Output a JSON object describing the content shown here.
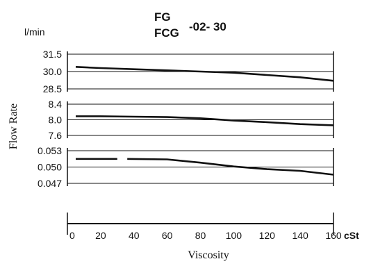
{
  "title": {
    "line1": "FG",
    "line2_prefix": "FCG",
    "line2_suffix": "-02- 30"
  },
  "unit_label": "l/min",
  "ylabel": "Flow Rate",
  "xlabel": "Viscosity",
  "x_unit": "cSt",
  "colors": {
    "ink": "#111111",
    "background": "#ffffff"
  },
  "chart_data": [
    {
      "type": "line",
      "panel": "top",
      "x": [
        5,
        20,
        40,
        60,
        80,
        100,
        120,
        140,
        160
      ],
      "series": [
        {
          "values": [
            30.4,
            30.3,
            30.2,
            30.1,
            30.0,
            29.9,
            29.7,
            29.5,
            29.2
          ]
        }
      ],
      "yticks": [
        "31.5",
        "30.0",
        "28.5"
      ],
      "ylim": [
        28.5,
        31.5
      ],
      "xlim": [
        0,
        160
      ],
      "grid": "horizontal center line"
    },
    {
      "type": "line",
      "panel": "middle",
      "x": [
        5,
        20,
        40,
        60,
        80,
        100,
        120,
        140,
        160
      ],
      "series": [
        {
          "values": [
            8.09,
            8.09,
            8.08,
            8.07,
            8.04,
            7.98,
            7.94,
            7.89,
            7.86
          ]
        }
      ],
      "yticks": [
        "8.4",
        "8.0",
        "7.6"
      ],
      "ylim": [
        7.6,
        8.4
      ],
      "xlim": [
        0,
        160
      ],
      "grid": "horizontal center line"
    },
    {
      "type": "line",
      "panel": "bottom",
      "x": [
        5,
        20,
        30,
        33,
        36,
        60,
        80,
        100,
        120,
        140,
        160
      ],
      "series": [
        {
          "values": [
            0.0515,
            0.0515,
            0.0515,
            null,
            0.0515,
            0.0514,
            0.0508,
            0.0501,
            0.0496,
            0.0493,
            0.0486
          ]
        }
      ],
      "yticks": [
        "0.053",
        "0.050",
        "0.047"
      ],
      "ylim": [
        0.047,
        0.053
      ],
      "xlim": [
        0,
        160
      ],
      "grid": "horizontal center line"
    }
  ],
  "xaxis": {
    "ticks": [
      0,
      20,
      40,
      60,
      80,
      100,
      120,
      140,
      160
    ],
    "tick_labels": [
      "0",
      "20",
      "40",
      "60",
      "80",
      "100",
      "120",
      "140",
      "160"
    ]
  }
}
